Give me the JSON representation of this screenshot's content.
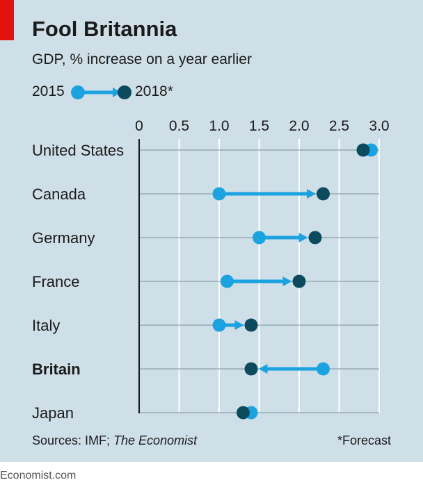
{
  "chart_data": {
    "type": "dumbbell",
    "title": "Fool Britannia",
    "subtitle": "GDP, % increase on a year earlier",
    "legend": {
      "from_label": "2015",
      "to_label": "2018*"
    },
    "xlim": [
      0,
      3.0
    ],
    "x_ticks": [
      "0",
      "0.5",
      "1.0",
      "1.5",
      "2.0",
      "2.5",
      "3.0"
    ],
    "x_tick_values": [
      0,
      0.5,
      1.0,
      1.5,
      2.0,
      2.5,
      3.0
    ],
    "categories": [
      "United States",
      "Canada",
      "Germany",
      "France",
      "Italy",
      "Britain",
      "Japan"
    ],
    "highlight": "Britain",
    "series": [
      {
        "name": "2015",
        "values": [
          2.9,
          1.0,
          1.5,
          1.1,
          1.0,
          2.3,
          1.4
        ]
      },
      {
        "name": "2018*",
        "values": [
          2.8,
          2.3,
          2.2,
          2.0,
          1.4,
          1.4,
          1.3
        ]
      }
    ],
    "colors": {
      "from": "#1aa3e0",
      "to": "#0c4a5e",
      "background": "#cfdfe8",
      "gridline": "#ffffff",
      "rowline": "#8aa0ab",
      "accent": "#e3120b"
    },
    "source": {
      "prefix": "Sources: IMF; ",
      "italic": "The Economist"
    },
    "footnote": "*Forecast"
  },
  "brand": "Economist.com"
}
